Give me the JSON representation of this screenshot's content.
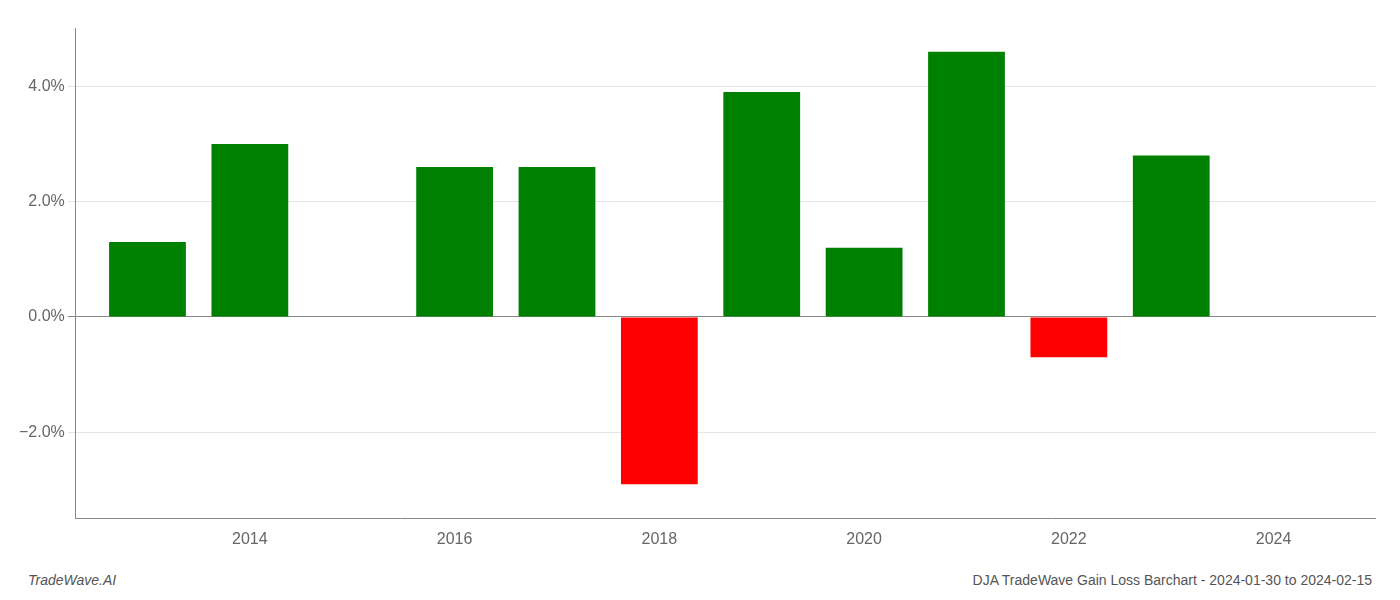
{
  "chart_data": {
    "type": "bar",
    "x": [
      2013,
      2014,
      2016,
      2017,
      2018,
      2019,
      2020,
      2021,
      2022,
      2023
    ],
    "values": [
      1.3,
      3.0,
      2.6,
      2.6,
      -2.9,
      3.9,
      1.2,
      4.6,
      -0.7,
      2.8
    ],
    "colors": [
      "#008000",
      "#008000",
      "#008000",
      "#008000",
      "#ff0000",
      "#008000",
      "#008000",
      "#008000",
      "#ff0000",
      "#008000"
    ],
    "xlim": [
      2012.3,
      2025.0
    ],
    "xticks": [
      2014,
      2016,
      2018,
      2020,
      2022,
      2024
    ],
    "ylim": [
      -3.5,
      5.0
    ],
    "yticks": [
      {
        "value": -2.0,
        "label": "−2.0%"
      },
      {
        "value": 0.0,
        "label": "0.0%"
      },
      {
        "value": 2.0,
        "label": "2.0%"
      },
      {
        "value": 4.0,
        "label": "4.0%"
      }
    ],
    "grid": true,
    "annotations": [
      "TradeWave.AI",
      "DJA TradeWave Gain Loss Barchart - 2024-01-30 to 2024-02-15"
    ]
  }
}
